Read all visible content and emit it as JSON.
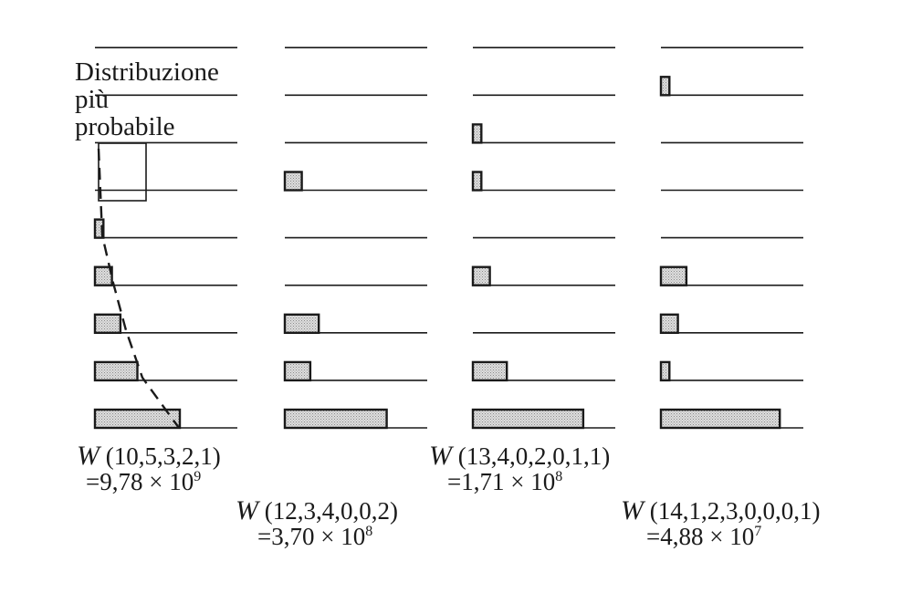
{
  "title_lines": [
    "Distribuzione",
    "più",
    "probabile"
  ],
  "colors": {
    "line": "#1a1a1a",
    "bar_fill": "#cfcfcf",
    "bar_stroke": "#1a1a1a"
  },
  "columns": [
    {
      "occupation": [
        10,
        5,
        3,
        2,
        1,
        0,
        0,
        0,
        0
      ],
      "formula": "(10,5,3,2,1)",
      "value_mantissa": "9,78",
      "value_exponent": "9"
    },
    {
      "occupation": [
        12,
        3,
        4,
        0,
        0,
        2,
        0,
        0,
        0
      ],
      "formula": "(12,3,4,0,0,2)",
      "value_mantissa": "3,70",
      "value_exponent": "8"
    },
    {
      "occupation": [
        13,
        4,
        0,
        2,
        0,
        1,
        1,
        0,
        0
      ],
      "formula": "(13,4,0,2,0,1,1)",
      "value_mantissa": "1,71",
      "value_exponent": "8"
    },
    {
      "occupation": [
        14,
        1,
        2,
        3,
        0,
        0,
        0,
        1,
        0
      ],
      "formula": "(14,1,2,3,0,0,0,1)",
      "value_mantissa": "4,88",
      "value_exponent": "7"
    }
  ],
  "w_symbol": "W",
  "equals": "=",
  "times": "×",
  "ten": "10"
}
